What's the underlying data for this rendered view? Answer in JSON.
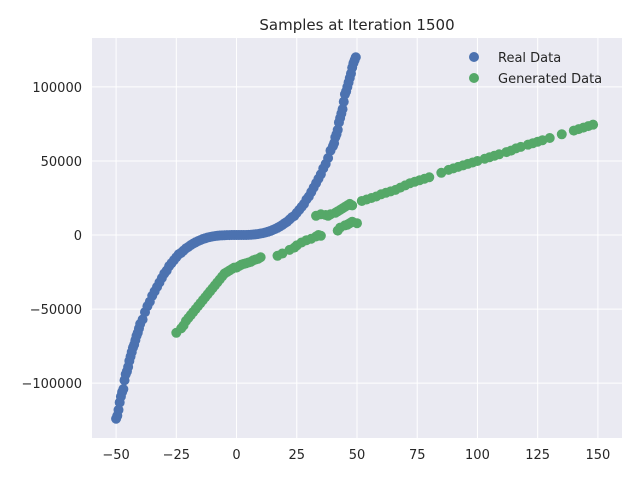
{
  "chart_data": {
    "type": "scatter",
    "title": "Samples at Iteration 1500",
    "xlabel": "",
    "ylabel": "",
    "xlim": [
      -60,
      160
    ],
    "ylim": [
      -137000,
      133000
    ],
    "x_ticks": [
      -50,
      -25,
      0,
      25,
      50,
      75,
      100,
      125,
      150
    ],
    "y_ticks": [
      -100000,
      -50000,
      0,
      50000,
      100000
    ],
    "x_tick_labels": [
      "−50",
      "−25",
      "0",
      "25",
      "50",
      "75",
      "100",
      "125",
      "150"
    ],
    "y_tick_labels": [
      "−100000",
      "−50000",
      "0",
      "50000",
      "100000"
    ],
    "grid": true,
    "legend_position": "top-right",
    "colors": {
      "plot_background": "#eaeaf2",
      "grid": "#ffffff",
      "real": "#4c72b0",
      "generated": "#55a868"
    },
    "series": [
      {
        "name": "Real Data",
        "color": "#4c72b0",
        "x": [
          -50,
          -49.5,
          -49,
          -48.5,
          -48,
          -47.5,
          -47,
          -46.5,
          -46,
          -45.5,
          -45,
          -44.5,
          -44,
          -43.5,
          -43,
          -42.5,
          -42,
          -41.5,
          -41,
          -40.5,
          -40,
          -39,
          -38,
          -37,
          -36,
          -35,
          -34,
          -33,
          -32,
          -31,
          -30,
          -29,
          -28,
          -27,
          -26,
          -25,
          -24,
          -23,
          -22,
          -21,
          -20,
          -19,
          -18,
          -17,
          -16,
          -15,
          -14,
          -13,
          -12,
          -11,
          -10,
          -9,
          -8,
          -7,
          -6,
          -5,
          -4,
          -3,
          -2,
          -1,
          0,
          1,
          2,
          3,
          4,
          5,
          6,
          7,
          8,
          9,
          10,
          11,
          12,
          13,
          14,
          15,
          16,
          17,
          18,
          19,
          20,
          21,
          22,
          23,
          24,
          25,
          26,
          27,
          28,
          29,
          30,
          31,
          32,
          33,
          34,
          35,
          36,
          37,
          38,
          39,
          40,
          40.5,
          41,
          41.5,
          42,
          42.5,
          43,
          43.5,
          44,
          44.5,
          45,
          45.5,
          46,
          46.5,
          47,
          47.5,
          48,
          48.5,
          49,
          49.5
        ],
        "y": [
          -124000,
          -122000,
          -118000,
          -113000,
          -109000,
          -106000,
          -104000,
          -98000,
          -94000,
          -92000,
          -89000,
          -85000,
          -82000,
          -79000,
          -76000,
          -74000,
          -71000,
          -68000,
          -66000,
          -63000,
          -60000,
          -57000,
          -52000,
          -48000,
          -45000,
          -41000,
          -38000,
          -35000,
          -32000,
          -29000,
          -26000,
          -24000,
          -21000,
          -19000,
          -17000,
          -15000,
          -13000,
          -12000,
          -10500,
          -9000,
          -8000,
          -6800,
          -5800,
          -4900,
          -4100,
          -3400,
          -2700,
          -2200,
          -1700,
          -1300,
          -1000,
          -700,
          -500,
          -340,
          -220,
          -130,
          -60,
          -30,
          -10,
          0,
          0,
          0,
          10,
          30,
          60,
          130,
          220,
          340,
          500,
          700,
          1000,
          1300,
          1700,
          2200,
          2700,
          3400,
          4100,
          4900,
          5800,
          6800,
          8000,
          9000,
          10500,
          12000,
          13000,
          15000,
          17000,
          19000,
          21000,
          24000,
          26000,
          29000,
          32000,
          35000,
          38000,
          41000,
          45000,
          48000,
          52000,
          57000,
          60000,
          62000,
          66000,
          68000,
          71000,
          76000,
          79000,
          82000,
          85000,
          90000,
          95000,
          97000,
          100000,
          103000,
          106000,
          109000,
          113000,
          116000,
          118000,
          120000
        ]
      },
      {
        "name": "Generated Data",
        "color": "#55a868",
        "x": [
          -25,
          -23,
          -22,
          -21,
          -20,
          -19,
          -18,
          -17,
          -16,
          -15,
          -14,
          -13,
          -12,
          -11,
          -10,
          -9,
          -8,
          -7,
          -6,
          -5,
          -4,
          -3,
          -2,
          -1,
          0,
          1,
          2,
          3,
          4,
          5,
          6,
          7,
          8,
          9,
          10,
          17,
          19,
          22,
          24,
          25,
          27,
          29,
          31,
          33,
          34,
          35,
          33,
          35,
          37,
          38,
          39,
          41,
          42,
          43,
          44,
          45,
          46,
          47,
          48,
          42,
          43,
          45,
          46,
          47,
          48,
          50,
          52,
          54,
          56,
          58,
          60,
          62,
          64,
          66,
          68,
          70,
          72,
          74,
          76,
          78,
          80,
          85,
          88,
          90,
          92,
          94,
          96,
          98,
          100,
          103,
          105,
          107,
          109,
          112,
          114,
          116,
          118,
          121,
          123,
          125,
          127,
          130,
          135,
          140,
          142,
          144,
          146,
          148
        ],
        "y": [
          -66000,
          -63000,
          -61000,
          -58000,
          -56000,
          -54000,
          -52000,
          -50000,
          -48000,
          -46000,
          -44000,
          -42000,
          -40000,
          -38000,
          -36000,
          -34000,
          -32000,
          -30000,
          -28000,
          -26000,
          -25000,
          -24000,
          -23000,
          -22000,
          -22000,
          -21000,
          -20000,
          -19500,
          -19000,
          -18500,
          -18000,
          -17000,
          -16500,
          -16000,
          -15000,
          -14000,
          -12500,
          -10000,
          -8500,
          -7000,
          -5000,
          -3500,
          -2500,
          -1000,
          0,
          -500,
          13000,
          14000,
          13500,
          13000,
          14000,
          15000,
          16000,
          17000,
          18000,
          19000,
          20000,
          21000,
          20000,
          3000,
          5000,
          6500,
          7000,
          8000,
          9000,
          8000,
          23000,
          24000,
          25000,
          26000,
          27500,
          28500,
          29500,
          30500,
          32000,
          33500,
          35000,
          36000,
          37000,
          38000,
          39000,
          42000,
          44000,
          45000,
          46000,
          47000,
          48000,
          49000,
          50000,
          51500,
          52500,
          53500,
          54500,
          56000,
          57000,
          58500,
          59500,
          61000,
          62000,
          63000,
          64000,
          65500,
          68000,
          70500,
          71500,
          72500,
          73500,
          74500
        ]
      }
    ]
  }
}
